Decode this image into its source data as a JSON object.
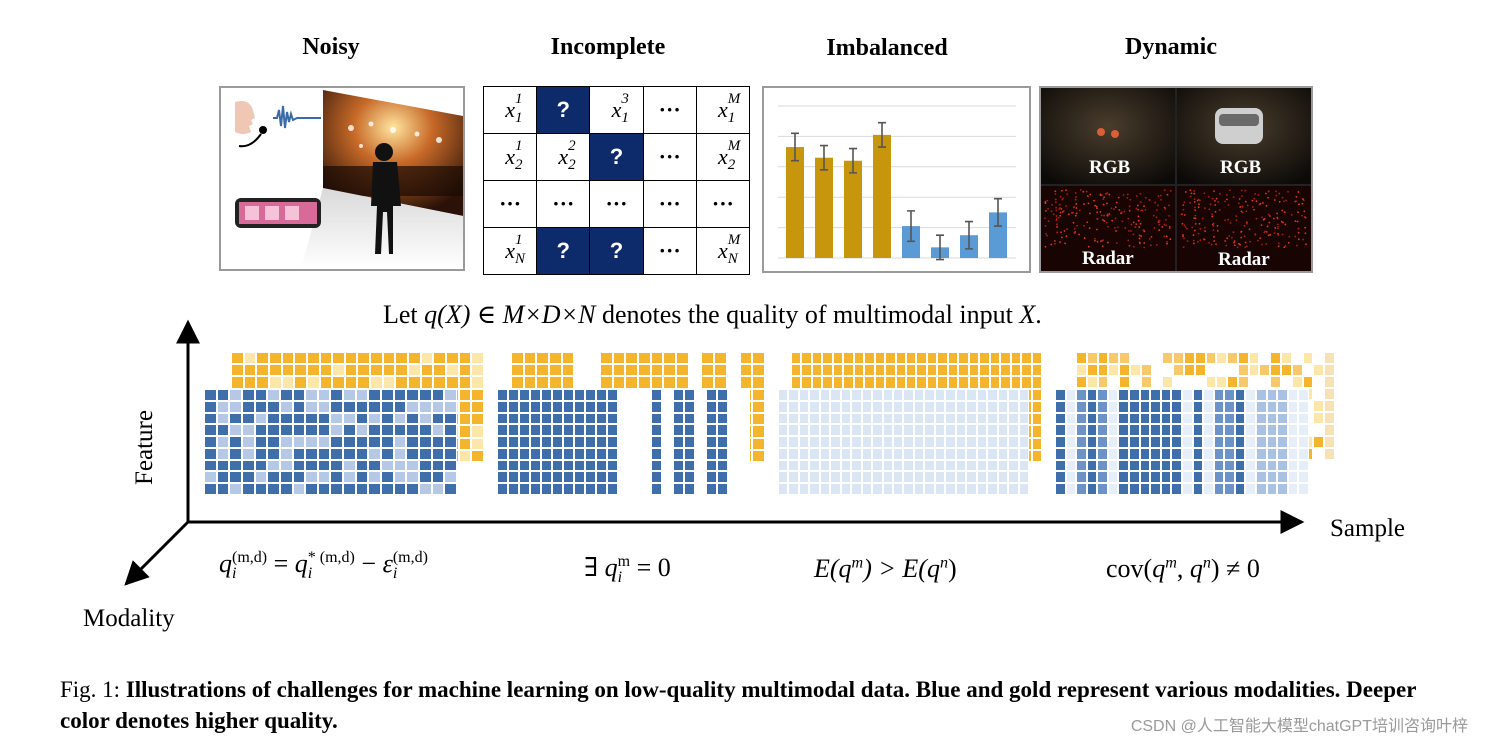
{
  "titles": {
    "noisy": "Noisy",
    "incomplete": "Incomplete",
    "imbalanced": "Imbalanced",
    "dynamic": "Dynamic"
  },
  "matrix": {
    "q": "?",
    "dots": "···",
    "row1": [
      "x",
      "1",
      "1",
      "?",
      "x",
      "1",
      "3",
      "···",
      "x",
      "1",
      "M"
    ],
    "row2": [
      "x",
      "2",
      "1",
      "x",
      "2",
      "2",
      "?",
      "···",
      "x",
      "2",
      "M"
    ],
    "row4": [
      "x",
      "N",
      "1",
      "?",
      "?",
      "···",
      "x",
      "N",
      "M"
    ]
  },
  "chart_data": {
    "type": "bar",
    "title": "Imbalanced",
    "series": [
      {
        "name": "gold modality",
        "color": "#c8960c",
        "values": [
          0.73,
          0.66,
          0.64,
          0.81
        ]
      },
      {
        "name": "blue modality",
        "color": "#5b9bd5",
        "values": [
          0.21,
          0.07,
          0.15,
          0.3
        ]
      }
    ],
    "errors": [
      0.09,
      0.08,
      0.08,
      0.08,
      0.1,
      0.08,
      0.09,
      0.09
    ],
    "ylim": [
      0,
      1
    ],
    "grid": true,
    "xlabel": "",
    "ylabel": ""
  },
  "dynamic": {
    "labels": [
      "RGB",
      "RGB",
      "Radar",
      "Radar"
    ]
  },
  "quality_statement": {
    "prefix": "Let ",
    "math": "q(X) ∈ M×D×N",
    "suffix": " denotes the quality of multimodal input ",
    "x": "X",
    "end": "."
  },
  "axes": {
    "feature": "Feature",
    "sample": "Sample",
    "modality": "Modality"
  },
  "formulas": {
    "noisy": {
      "q": "q",
      "sub_i": "i",
      "sup": "(m,d)",
      "eq": " = ",
      "star_sup": "* (m,d)",
      "minus": " − ",
      "eps": "ε"
    },
    "incomplete": {
      "exists": "∃ ",
      "q": "q",
      "sup": "m",
      "sub": "i",
      "rest": " = 0"
    },
    "imbalanced": {
      "text_a": "E(",
      "q1": "q",
      "sup1": "m",
      "mid": ") > E(",
      "q2": "q",
      "sup2": "n",
      "end": ")"
    },
    "dynamic": {
      "text_a": "cov(",
      "q1": "q",
      "sup1": "m",
      "comma": ", ",
      "q2": "q",
      "sup2": "n",
      "end": ") ≠ 0"
    }
  },
  "caption": {
    "label": "Fig. 1: ",
    "text": "Illustrations of challenges for machine learning on low-quality multimodal data. Blue and gold represent various modalities. Deeper color denotes higher quality."
  },
  "watermark": "CSDN @人工智能大模型chatGPT培训咨询叶梓",
  "colors": {
    "gold": "#f4b42c",
    "gold_light": "#fde7a8",
    "blue": "#3f6faa",
    "blue_light": "#b5c9e6",
    "navy": "#0d2a6b"
  }
}
